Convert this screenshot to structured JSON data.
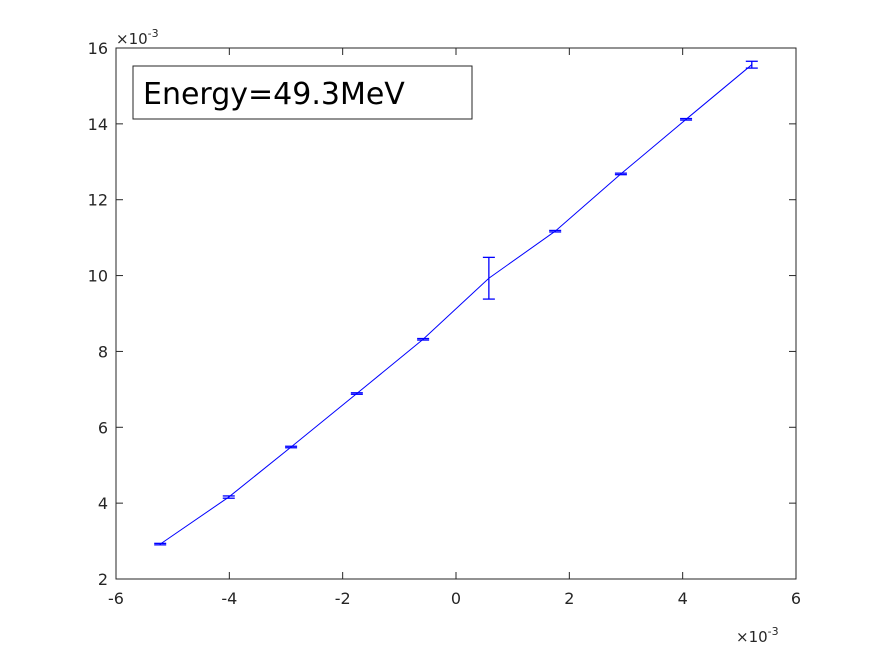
{
  "chart_data": {
    "type": "line",
    "title": "",
    "xlabel": "",
    "ylabel": "",
    "xlim": [
      -6,
      6
    ],
    "ylim": [
      2,
      16
    ],
    "x_ticks": [
      -6,
      -4,
      -2,
      0,
      2,
      4,
      6
    ],
    "y_ticks": [
      2,
      4,
      6,
      8,
      10,
      12,
      14,
      16
    ],
    "x_exponent_label": "×10",
    "x_exponent": "-3",
    "y_exponent_label": "×10",
    "y_exponent": "-3",
    "grid": false,
    "legend_text": "Energy=49.3MeV",
    "legend_placement": "top-left",
    "series": [
      {
        "color": "#0000ff",
        "error_bars": true,
        "x": [
          -5.22,
          -4.01,
          -2.91,
          -1.75,
          -0.58,
          0.58,
          1.75,
          2.91,
          4.06,
          5.22
        ],
        "y": [
          2.92,
          4.16,
          5.48,
          6.89,
          8.32,
          9.93,
          11.17,
          12.68,
          14.12,
          15.56
        ],
        "err": [
          0.02,
          0.03,
          0.02,
          0.02,
          0.02,
          0.55,
          0.02,
          0.02,
          0.02,
          0.09
        ]
      }
    ]
  }
}
